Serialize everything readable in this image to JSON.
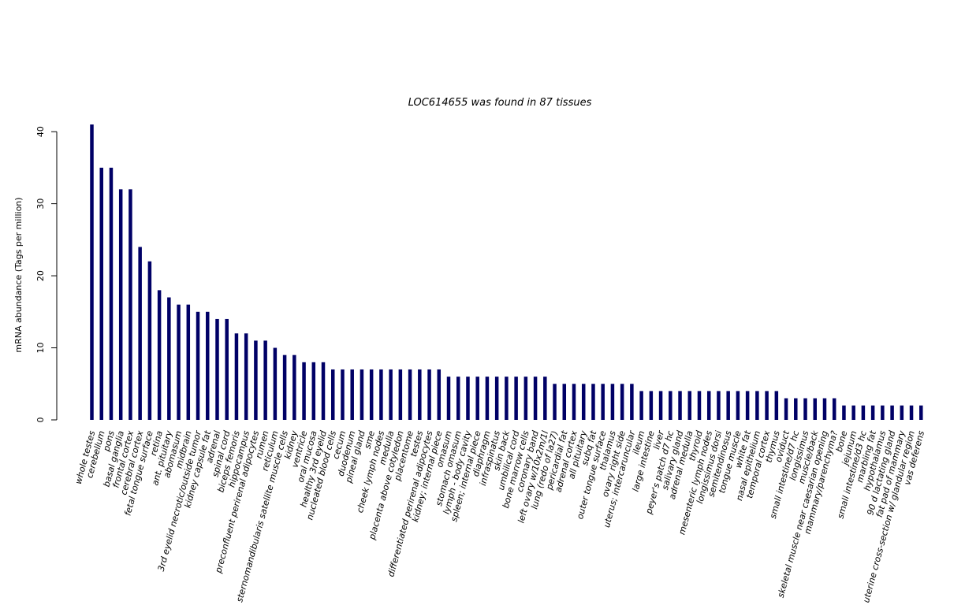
{
  "chart_data": {
    "type": "bar",
    "title": "LOC614655  was found in  87  tissues",
    "ylabel": "mRNA abundance (Tags per million)",
    "xlabel": "",
    "ylim": [
      0,
      41
    ],
    "yticks": [
      0,
      10,
      20,
      30,
      40
    ],
    "bar_color": "#000066",
    "categories": [
      "whole testes",
      "cerebellum",
      "pons",
      "basal ganglia",
      "frontal cortex",
      "cerebral cortex",
      "fetal tongue surface",
      "retina",
      "ant. pituitary",
      "abomasum",
      "midbrain",
      "3rd eyelid necrotic/outside tumor",
      "kidney capsule fat",
      "adrenal",
      "spinal cord",
      "biceps femoris",
      "hippocampus",
      "preconfluent perirenal adipocytes",
      "rumen",
      "reticulum",
      "sternomandibularis satellite muscle cells",
      "kidney",
      "ventricle",
      "oral mucosa",
      "healthy 3rd eyelid",
      "nucleated blood cells",
      "cecum",
      "duodenum",
      "pineal gland",
      "sme",
      "cheek lymph nodes",
      "medulla",
      "placenta above cotyledon",
      "placentome",
      "testes",
      "differentiated perirenal adipocytes",
      "kidney; internal piece",
      "omasum",
      "stomach omasum",
      "lymph - body cavity",
      "spleen; internal piece",
      "diaphragm",
      "infraspinatus",
      "skin back",
      "umbilical cord",
      "bone marrow cells",
      "coronary band",
      "left ovary w/10x2m/1l",
      "lung (redo of la27)",
      "pericardial fat",
      "adrenal cortex",
      "all pituitary",
      "subq fat",
      "outer tongue surface",
      "thalamus",
      "ovary right side",
      "uterus; intercaruncular",
      "ileum",
      "large intestine",
      "liver",
      "peyer's patch d7 hc",
      "salivary gland",
      "adrenal medulla",
      "thyroid",
      "mesenteric lymph nodes",
      "longissimus dorsi",
      "semitendinosus",
      "tongue muscle",
      "white fat",
      "nasal epithelium",
      "temporal cortex",
      "thymus",
      "oviduct",
      "small intestine/d7 hc",
      "longissimus",
      "muscle/back",
      "skeletal muscle near caesarian opening",
      "mammary/parenchyma?",
      "bone",
      "jejunum",
      "small intestine/d3 hc",
      "marbling fat",
      "hypothalamus",
      "90 d lactating gland",
      "fat pad of mammary",
      "uterine cross-section w/ glandular region",
      "vas deferens"
    ],
    "values": [
      41,
      35,
      35,
      32,
      32,
      24,
      22,
      18,
      17,
      16,
      16,
      15,
      15,
      14,
      14,
      12,
      12,
      11,
      11,
      10,
      9,
      9,
      8,
      8,
      8,
      7,
      7,
      7,
      7,
      7,
      7,
      7,
      7,
      7,
      7,
      7,
      7,
      6,
      6,
      6,
      6,
      6,
      6,
      6,
      6,
      6,
      6,
      6,
      5,
      5,
      5,
      5,
      5,
      5,
      5,
      5,
      5,
      4,
      4,
      4,
      4,
      4,
      4,
      4,
      4,
      4,
      4,
      4,
      4,
      4,
      4,
      4,
      3,
      3,
      3,
      3,
      3,
      3,
      2,
      2,
      2,
      2,
      2,
      2,
      2,
      2,
      2
    ]
  }
}
